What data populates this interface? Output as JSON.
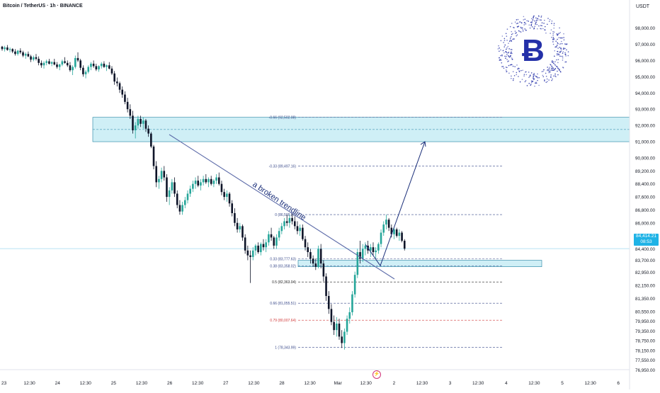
{
  "header": {
    "symbol": "Bitcoin / TetherUS · 1h · BINANCE",
    "currency": "USDT"
  },
  "colors": {
    "up": "#26a69a",
    "down": "#0e1428",
    "zone_fill": "#bfe9f3",
    "zone_stroke": "#1e7fa0",
    "trend": "#5b6aa8",
    "arrow": "#1b2f7a",
    "price_tag": "#1fb3e6",
    "fib_blue": "#3a4a8a",
    "fib_red": "#d23a3a",
    "axis_text": "#131722",
    "logo": "#2430a8"
  },
  "logo": {
    "icon": "bitcoin-logo-icon"
  },
  "chart_data": {
    "type": "candlestick",
    "y_axis": {
      "ylim": [
        76530,
        98850
      ],
      "ticks": [
        "98,000.00",
        "97,000.00",
        "96,000.00",
        "95,000.00",
        "94,000.00",
        "93,000.00",
        "92,000.00",
        "91,000.00",
        "90,000.00",
        "89,200.00",
        "88,400.00",
        "87,600.00",
        "86,800.00",
        "86,000.00",
        "85,200.00",
        "84,400.00",
        "83,700.00",
        "82,950.00",
        "82,150.00",
        "81,350.00",
        "80,550.00",
        "79,950.00",
        "79,350.00",
        "78,750.00",
        "78,150.00",
        "77,550.00",
        "76,950.00"
      ],
      "tick_values": [
        98000,
        97000,
        96000,
        95000,
        94000,
        93000,
        92000,
        91000,
        90000,
        89200,
        88400,
        87600,
        86800,
        86000,
        85200,
        84400,
        83700,
        82950,
        82150,
        81350,
        80550,
        79950,
        79350,
        78750,
        78150,
        77550,
        76950
      ]
    },
    "x_axis": {
      "labels": [
        "23",
        "12:30",
        "24",
        "12:30",
        "25",
        "12:30",
        "26",
        "12:30",
        "27",
        "12:30",
        "28",
        "12:30",
        "Mar",
        "12:30",
        "2",
        "12:30",
        "3",
        "12:30",
        "4",
        "12:30",
        "5",
        "12:30",
        "6"
      ]
    },
    "current_price": {
      "label": "84,414.21",
      "countdown": "08:53",
      "value": 84414.21
    },
    "zones": [
      {
        "name": "resistance",
        "from": 91000,
        "to": 92500
      },
      {
        "name": "support",
        "from": 83300,
        "to": 83700
      }
    ],
    "fib_levels": [
      {
        "label": "-0.66 (92,502.08)",
        "value": 92502.08,
        "color": "blue"
      },
      {
        "label": "-0.33 (89,497.16)",
        "value": 89497.16,
        "color": "blue"
      },
      {
        "label": "0 (86,509.86)",
        "value": 86509.86,
        "color": "blue"
      },
      {
        "label": "0.33 (83,777.63)",
        "value": 83777.63,
        "color": "blue"
      },
      {
        "label": "0.38 (83,358.02)",
        "value": 83358.02,
        "color": "blue"
      },
      {
        "label": "0.5 (82,363.04)",
        "value": 82363.04,
        "color": "dark"
      },
      {
        "label": "0.66 (81,055.51)",
        "value": 81055.51,
        "color": "blue"
      },
      {
        "label": "0.79 (80,007.64)",
        "value": 80007.64,
        "color": "red"
      },
      {
        "label": "1 (78,343.99)",
        "value": 78343.99,
        "color": "blue"
      }
    ],
    "trendline": {
      "label": "a broken trendline"
    },
    "projection_target": 91000,
    "projection_low": 83500,
    "series": [
      {
        "name": "BTCUSDT 1h",
        "points": [
          [
            96850,
            96900,
            96600,
            96700
          ],
          [
            96700,
            96900,
            96550,
            96800
          ],
          [
            96800,
            96950,
            96600,
            96650
          ],
          [
            96650,
            96800,
            96500,
            96700
          ],
          [
            96700,
            96750,
            96450,
            96550
          ],
          [
            96550,
            96700,
            96300,
            96400
          ],
          [
            96400,
            96650,
            96300,
            96600
          ],
          [
            96600,
            96750,
            96400,
            96500
          ],
          [
            96500,
            96600,
            96200,
            96300
          ],
          [
            96300,
            96500,
            96100,
            96400
          ],
          [
            96400,
            96550,
            96200,
            96250
          ],
          [
            96250,
            96350,
            95900,
            96050
          ],
          [
            96050,
            96300,
            95950,
            96200
          ],
          [
            96200,
            96400,
            96000,
            96100
          ],
          [
            96100,
            96250,
            95700,
            95850
          ],
          [
            95850,
            96000,
            95550,
            95700
          ],
          [
            95700,
            95950,
            95500,
            95850
          ],
          [
            95850,
            96050,
            95700,
            95950
          ],
          [
            95950,
            96100,
            95750,
            95800
          ],
          [
            95800,
            95950,
            95650,
            95900
          ],
          [
            95900,
            96100,
            95700,
            95750
          ],
          [
            95750,
            95900,
            95500,
            95600
          ],
          [
            95600,
            95800,
            95400,
            95750
          ],
          [
            95750,
            96050,
            95650,
            95950
          ],
          [
            95950,
            96200,
            95800,
            95850
          ],
          [
            95850,
            96000,
            95600,
            95700
          ],
          [
            95700,
            95900,
            95300,
            95400
          ],
          [
            95400,
            95700,
            95100,
            95600
          ],
          [
            95600,
            96300,
            95500,
            96150
          ],
          [
            96150,
            96500,
            95900,
            96000
          ],
          [
            96000,
            96100,
            95400,
            95550
          ],
          [
            95550,
            95700,
            95000,
            95150
          ],
          [
            95150,
            95400,
            94900,
            95300
          ],
          [
            95300,
            95700,
            95200,
            95600
          ],
          [
            95600,
            95900,
            95400,
            95800
          ],
          [
            95800,
            96000,
            95550,
            95650
          ],
          [
            95650,
            95800,
            95350,
            95450
          ],
          [
            95450,
            95700,
            95300,
            95650
          ],
          [
            95650,
            95900,
            95500,
            95800
          ],
          [
            95800,
            95950,
            95550,
            95600
          ],
          [
            95600,
            95750,
            95350,
            95700
          ],
          [
            95700,
            95900,
            95450,
            95500
          ],
          [
            95500,
            95650,
            95100,
            95200
          ],
          [
            95200,
            95350,
            94500,
            94700
          ],
          [
            94700,
            94950,
            94400,
            94600
          ],
          [
            94600,
            94700,
            94000,
            94200
          ],
          [
            94200,
            94400,
            93700,
            93900
          ],
          [
            93900,
            94100,
            93300,
            93450
          ],
          [
            93450,
            93700,
            92800,
            93000
          ],
          [
            93000,
            93300,
            92400,
            92600
          ],
          [
            92600,
            92900,
            91500,
            91700
          ],
          [
            91700,
            92200,
            91200,
            92000
          ],
          [
            92000,
            92600,
            91800,
            92400
          ],
          [
            92400,
            92600,
            91900,
            92100
          ],
          [
            92100,
            92500,
            91800,
            92300
          ],
          [
            92300,
            92400,
            91600,
            91800
          ],
          [
            91800,
            92000,
            91300,
            91500
          ],
          [
            91500,
            91600,
            90600,
            90700
          ],
          [
            90700,
            90800,
            89300,
            89500
          ],
          [
            89500,
            89800,
            88200,
            88500
          ],
          [
            88500,
            88900,
            88100,
            88700
          ],
          [
            88700,
            89400,
            88500,
            89200
          ],
          [
            89200,
            89500,
            88600,
            88800
          ],
          [
            88800,
            89000,
            87300,
            87600
          ],
          [
            87600,
            88200,
            87100,
            88000
          ],
          [
            88000,
            88700,
            87800,
            88500
          ],
          [
            88500,
            88800,
            87600,
            87800
          ],
          [
            87800,
            88000,
            86900,
            87100
          ],
          [
            87100,
            87400,
            86500,
            86700
          ],
          [
            86700,
            87300,
            86500,
            87100
          ],
          [
            87100,
            87600,
            86900,
            87400
          ],
          [
            87400,
            88000,
            87200,
            87800
          ],
          [
            87800,
            88300,
            87600,
            88100
          ],
          [
            88100,
            88600,
            87900,
            88400
          ],
          [
            88400,
            88800,
            88100,
            88600
          ],
          [
            88600,
            88900,
            88200,
            88300
          ],
          [
            88300,
            88700,
            88000,
            88500
          ],
          [
            88500,
            88900,
            88300,
            88700
          ],
          [
            88700,
            89000,
            88400,
            88500
          ],
          [
            88500,
            88800,
            88200,
            88700
          ],
          [
            88700,
            88900,
            88300,
            88400
          ],
          [
            88400,
            88700,
            88200,
            88600
          ],
          [
            88600,
            89000,
            88400,
            88800
          ],
          [
            88800,
            89100,
            88300,
            88400
          ],
          [
            88400,
            88600,
            87700,
            87900
          ],
          [
            87900,
            88100,
            87400,
            87600
          ],
          [
            87600,
            88000,
            87300,
            87800
          ],
          [
            87800,
            87900,
            87000,
            87200
          ],
          [
            87200,
            87400,
            86400,
            86600
          ],
          [
            86600,
            86900,
            85800,
            86000
          ],
          [
            86000,
            86300,
            85400,
            85600
          ],
          [
            85600,
            86000,
            85400,
            85800
          ],
          [
            85800,
            85900,
            84900,
            85100
          ],
          [
            85100,
            85300,
            84100,
            84300
          ],
          [
            84300,
            84600,
            83700,
            84000
          ],
          [
            84000,
            84300,
            82300,
            83900
          ],
          [
            83900,
            84500,
            83700,
            84300
          ],
          [
            84300,
            84700,
            84000,
            84600
          ],
          [
            84600,
            84800,
            84100,
            84200
          ],
          [
            84200,
            84800,
            84000,
            84700
          ],
          [
            84700,
            85000,
            84300,
            84500
          ],
          [
            84500,
            85000,
            84200,
            84800
          ],
          [
            84800,
            85500,
            84600,
            85300
          ],
          [
            85300,
            85700,
            84900,
            85100
          ],
          [
            85100,
            85200,
            84400,
            84600
          ],
          [
            84600,
            85300,
            84400,
            85100
          ],
          [
            85100,
            85700,
            84900,
            85500
          ],
          [
            85500,
            86000,
            85300,
            85800
          ],
          [
            85800,
            86300,
            85600,
            86100
          ],
          [
            86100,
            86500,
            85800,
            86000
          ],
          [
            86000,
            86500,
            85700,
            86300
          ],
          [
            86300,
            86600,
            85900,
            86100
          ],
          [
            86100,
            86400,
            85600,
            85800
          ],
          [
            85800,
            86100,
            85300,
            85500
          ],
          [
            85500,
            85900,
            85200,
            85700
          ],
          [
            85700,
            85900,
            84900,
            85000
          ],
          [
            85000,
            85200,
            84300,
            84500
          ],
          [
            84500,
            84800,
            83900,
            84200
          ],
          [
            84200,
            84400,
            83500,
            83800
          ],
          [
            83800,
            84000,
            83300,
            83500
          ],
          [
            83500,
            83800,
            83100,
            83300
          ],
          [
            83300,
            84600,
            83200,
            84400
          ],
          [
            84400,
            84700,
            83200,
            83500
          ],
          [
            83500,
            83700,
            82400,
            82700
          ],
          [
            82700,
            82900,
            81200,
            81500
          ],
          [
            81500,
            81800,
            80400,
            80700
          ],
          [
            80700,
            81000,
            79700,
            79900
          ],
          [
            79900,
            80300,
            79100,
            79400
          ],
          [
            79400,
            80200,
            79000,
            79800
          ],
          [
            79800,
            80100,
            78800,
            79000
          ],
          [
            79000,
            79400,
            78300,
            78600
          ],
          [
            78600,
            79500,
            78200,
            79300
          ],
          [
            79300,
            80300,
            79100,
            80100
          ],
          [
            80100,
            80800,
            79800,
            80500
          ],
          [
            80500,
            81800,
            80300,
            81600
          ],
          [
            81600,
            83000,
            81400,
            82800
          ],
          [
            82800,
            84400,
            82600,
            84200
          ],
          [
            84200,
            84900,
            83500,
            83800
          ],
          [
            83800,
            84700,
            83600,
            84400
          ],
          [
            84400,
            84800,
            84000,
            84600
          ],
          [
            84600,
            84900,
            84100,
            84300
          ],
          [
            84300,
            84700,
            83900,
            84500
          ],
          [
            84500,
            84800,
            84000,
            84200
          ],
          [
            84200,
            84500,
            83800,
            84300
          ],
          [
            84300,
            84800,
            84100,
            84700
          ],
          [
            84700,
            85600,
            84500,
            85400
          ],
          [
            85400,
            86100,
            85200,
            85900
          ],
          [
            85900,
            86500,
            85600,
            86200
          ],
          [
            86200,
            86300,
            85500,
            85700
          ],
          [
            85700,
            85900,
            85100,
            85300
          ],
          [
            85300,
            85700,
            85000,
            85600
          ],
          [
            85600,
            85700,
            85100,
            85200
          ],
          [
            85200,
            85600,
            84900,
            85400
          ],
          [
            85400,
            85500,
            84800,
            84900
          ],
          [
            84900,
            85000,
            84300,
            84414
          ]
        ]
      }
    ]
  }
}
